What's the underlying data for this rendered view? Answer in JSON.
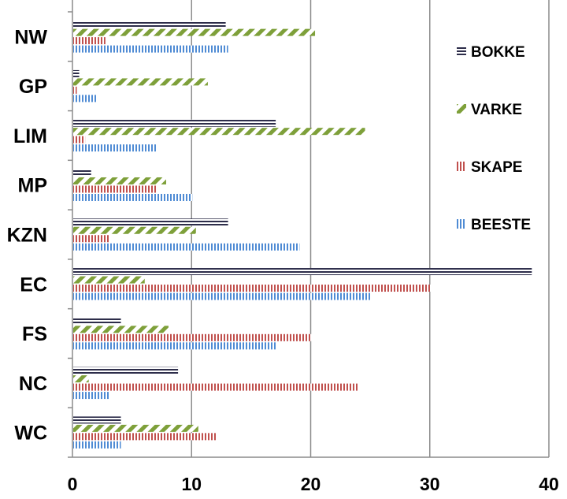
{
  "chart_data": {
    "type": "bar",
    "orientation": "horizontal",
    "categories": [
      "NW",
      "GP",
      "LIM",
      "MP",
      "KZN",
      "EC",
      "FS",
      "NC",
      "WC"
    ],
    "series": [
      {
        "name": "BOKKE",
        "values": [
          12.8,
          0.5,
          17,
          1.5,
          13,
          38.5,
          4,
          8.8,
          4
        ],
        "color": "#2d2d4a",
        "pattern": "horizontal-lines"
      },
      {
        "name": "VARKE",
        "values": [
          20.3,
          11.3,
          24.5,
          7.8,
          10.3,
          6,
          8,
          1.3,
          10.5
        ],
        "color": "#7ea03a",
        "pattern": "diagonal-stripes"
      },
      {
        "name": "SKAPE",
        "values": [
          2.7,
          0.3,
          1,
          7,
          3,
          30,
          20,
          24,
          12
        ],
        "color": "#c0504d",
        "pattern": "vertical-lines"
      },
      {
        "name": "BEESTE",
        "values": [
          13,
          2,
          7,
          10,
          19,
          25,
          17,
          3,
          4
        ],
        "color": "#4f8bd4",
        "pattern": "vertical-lines"
      }
    ],
    "xlim": [
      0,
      40
    ],
    "xticks": [
      "0",
      "10",
      "20",
      "30",
      "40"
    ],
    "grid": "vertical",
    "legend_position": "right",
    "title": "",
    "xlabel": "",
    "ylabel": ""
  }
}
